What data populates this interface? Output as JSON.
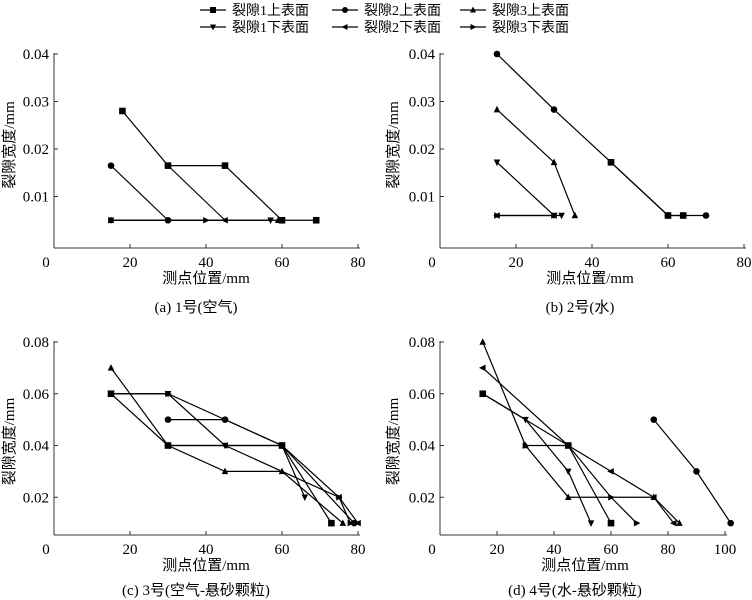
{
  "legend": [
    {
      "name": "裂隙1上表面",
      "marker": "square"
    },
    {
      "name": "裂隙2上表面",
      "marker": "circle"
    },
    {
      "name": "裂隙3上表面",
      "marker": "triangle-up"
    },
    {
      "name": "裂隙1下表面",
      "marker": "triangle-down"
    },
    {
      "name": "裂隙2下表面",
      "marker": "triangle-left"
    },
    {
      "name": "裂隙3下表面",
      "marker": "triangle-right"
    }
  ],
  "chart_data": [
    {
      "type": "line",
      "caption": "(a)  1号(空气)",
      "xlabel": "测点位置/mm",
      "ylabel": "裂隙宽度/mm",
      "xlim": [
        0,
        80
      ],
      "ylim": [
        0,
        0.04
      ],
      "xticks": [
        0,
        20,
        40,
        60,
        80
      ],
      "yticks": [
        0.01,
        0.02,
        0.03,
        0.04
      ],
      "series": [
        {
          "name": "裂隙1上表面",
          "points": [
            [
              18,
              0.028
            ],
            [
              30,
              0.0165
            ],
            [
              45,
              0.0165
            ],
            [
              60,
              0.005
            ],
            [
              69,
              0.005
            ]
          ]
        },
        {
          "name": "裂隙2上表面",
          "points": [
            [
              15,
              0.0165
            ],
            [
              30,
              0.005
            ]
          ]
        },
        {
          "name": "裂隙3上表面",
          "points": [
            [
              15,
              0.005
            ],
            [
              59,
              0.005
            ]
          ]
        },
        {
          "name": "裂隙1下表面",
          "points": [
            [
              15,
              0.005
            ],
            [
              57,
              0.005
            ]
          ]
        },
        {
          "name": "裂隙2下表面",
          "points": [
            [
              30,
              0.0165
            ],
            [
              45,
              0.005
            ]
          ]
        },
        {
          "name": "裂隙3下表面",
          "points": [
            [
              15,
              0.005
            ],
            [
              40,
              0.005
            ]
          ]
        }
      ]
    },
    {
      "type": "line",
      "caption": "(b)  2号(水)",
      "xlabel": "测点位置/mm",
      "ylabel": "裂隙宽度/mm",
      "xlim": [
        0,
        80
      ],
      "ylim": [
        0,
        0.04
      ],
      "xticks": [
        0,
        20,
        40,
        60,
        80
      ],
      "yticks": [
        0.01,
        0.02,
        0.03,
        0.04
      ],
      "series": [
        {
          "name": "裂隙1上表面",
          "points": [
            [
              45,
              0.0172
            ],
            [
              60,
              0.006
            ],
            [
              64,
              0.006
            ]
          ]
        },
        {
          "name": "裂隙2上表面",
          "points": [
            [
              15,
              0.04
            ],
            [
              30,
              0.0283
            ],
            [
              45,
              0.0172
            ],
            [
              60,
              0.006
            ],
            [
              70,
              0.006
            ]
          ]
        },
        {
          "name": "裂隙3上表面",
          "points": [
            [
              15,
              0.0283
            ],
            [
              30,
              0.0172
            ],
            [
              35.5,
              0.006
            ]
          ]
        },
        {
          "name": "裂隙1下表面",
          "points": [
            [
              15,
              0.0172
            ],
            [
              30,
              0.006
            ],
            [
              32,
              0.006
            ]
          ]
        },
        {
          "name": "裂隙2下表面",
          "points": [
            [
              15,
              0.006
            ],
            [
              30,
              0.006
            ]
          ]
        },
        {
          "name": "裂隙3下表面",
          "points": [
            [
              15,
              0.006
            ],
            [
              30,
              0.006
            ]
          ]
        }
      ]
    },
    {
      "type": "line",
      "caption": "(c)  3号(空气-悬砂颗粒)",
      "xlabel": "测点位置/mm",
      "ylabel": "裂隙宽度/mm",
      "xlim": [
        0,
        80
      ],
      "ylim": [
        0,
        0.08
      ],
      "xticks": [
        0,
        20,
        40,
        60,
        80
      ],
      "yticks": [
        0.02,
        0.04,
        0.06,
        0.08
      ],
      "series": [
        {
          "name": "裂隙1上表面",
          "points": [
            [
              15,
              0.06
            ],
            [
              30,
              0.04
            ],
            [
              60,
              0.04
            ],
            [
              73,
              0.01
            ]
          ]
        },
        {
          "name": "裂隙2上表面",
          "points": [
            [
              30,
              0.05
            ],
            [
              45,
              0.05
            ],
            [
              60,
              0.04
            ],
            [
              79,
              0.01
            ]
          ]
        },
        {
          "name": "裂隙3上表面",
          "points": [
            [
              15,
              0.07
            ],
            [
              30,
              0.04
            ],
            [
              45,
              0.03
            ],
            [
              60,
              0.03
            ],
            [
              76,
              0.01
            ]
          ]
        },
        {
          "name": "裂隙1下表面",
          "points": [
            [
              15,
              0.06
            ],
            [
              30,
              0.06
            ],
            [
              45,
              0.04
            ],
            [
              60,
              0.04
            ],
            [
              66,
              0.02
            ]
          ]
        },
        {
          "name": "裂隙2下表面",
          "points": [
            [
              30,
              0.04
            ],
            [
              45,
              0.04
            ],
            [
              75,
              0.02
            ],
            [
              80,
              0.01
            ]
          ]
        },
        {
          "name": "裂隙3下表面",
          "points": [
            [
              15,
              0.06
            ],
            [
              30,
              0.06
            ],
            [
              60,
              0.04
            ],
            [
              75,
              0.02
            ],
            [
              78,
              0.01
            ]
          ]
        }
      ]
    },
    {
      "type": "line",
      "caption": "(d)  4号(水-悬砂颗粒)",
      "xlabel": "测点位置/mm",
      "ylabel": "裂隙宽度/mm",
      "xlim": [
        0,
        100
      ],
      "ylim": [
        0,
        0.08
      ],
      "xticks": [
        0,
        20,
        40,
        60,
        80,
        100
      ],
      "yticks": [
        0.02,
        0.04,
        0.06,
        0.08
      ],
      "series": [
        {
          "name": "裂隙1上表面",
          "points": [
            [
              15,
              0.06
            ],
            [
              45,
              0.04
            ],
            [
              60,
              0.01
            ]
          ]
        },
        {
          "name": "裂隙2上表面",
          "points": [
            [
              75,
              0.05
            ],
            [
              90,
              0.03
            ],
            [
              102,
              0.01
            ]
          ]
        },
        {
          "name": "裂隙3上表面",
          "points": [
            [
              15,
              0.08
            ],
            [
              30,
              0.04
            ],
            [
              45,
              0.02
            ],
            [
              75,
              0.02
            ],
            [
              84,
              0.01
            ]
          ]
        },
        {
          "name": "裂隙1下表面",
          "points": [
            [
              15,
              0.06
            ],
            [
              30,
              0.05
            ],
            [
              45,
              0.03
            ],
            [
              53,
              0.01
            ]
          ]
        },
        {
          "name": "裂隙2下表面",
          "points": [
            [
              15,
              0.07
            ],
            [
              45,
              0.04
            ],
            [
              60,
              0.03
            ],
            [
              75,
              0.02
            ],
            [
              82,
              0.01
            ]
          ]
        },
        {
          "name": "裂隙3下表面",
          "points": [
            [
              30,
              0.04
            ],
            [
              45,
              0.04
            ],
            [
              60,
              0.02
            ],
            [
              69,
              0.01
            ]
          ]
        }
      ]
    }
  ]
}
